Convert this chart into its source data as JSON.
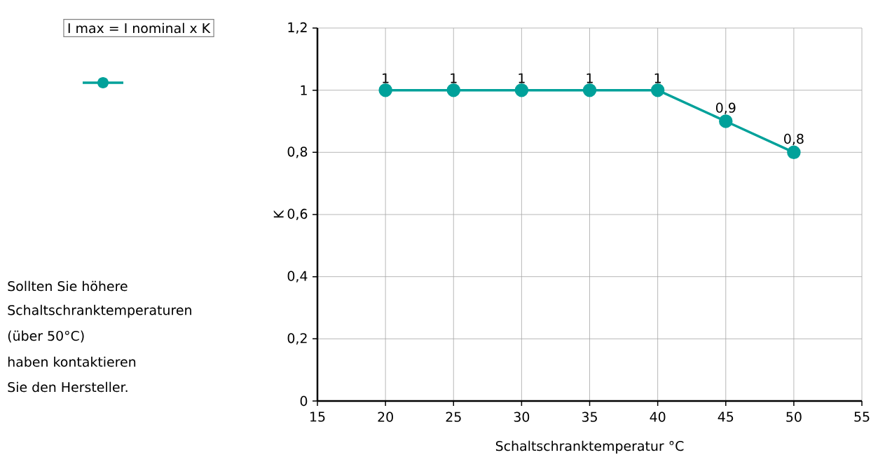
{
  "chart_data": {
    "type": "line",
    "xlabel": "Schaltschranktemperatur °C",
    "ylabel": "K",
    "x": [
      20,
      25,
      30,
      35,
      40,
      45,
      50
    ],
    "series": [
      {
        "color": "#00a19a",
        "values": [
          1,
          1,
          1,
          1,
          1,
          0.9,
          0.8
        ],
        "value_labels": [
          "1",
          "1",
          "1",
          "1",
          "1",
          "0,9",
          "0,8"
        ]
      }
    ],
    "xlim": [
      15,
      55
    ],
    "xticks": [
      15,
      20,
      25,
      30,
      35,
      40,
      45,
      50,
      55
    ],
    "ylim": [
      0,
      1.2
    ],
    "yticks": [
      0,
      {
        "value": 0.2,
        "label": "0,2"
      },
      {
        "value": 0.4,
        "label": "0,4"
      },
      {
        "value": 0.6,
        "label": "0,6"
      },
      {
        "value": 0.8,
        "label": "0,8"
      },
      1,
      {
        "value": 1.2,
        "label": "1,2"
      }
    ],
    "grid": true,
    "marker": "circle",
    "line_style": "solid",
    "annotations": [
      "I max = I nominal x K",
      "Sollten Sie höhere",
      "Schaltschranktemperaturen",
      "(über 50°C)",
      "haben kontaktieren",
      "Sie den Hersteller."
    ]
  }
}
